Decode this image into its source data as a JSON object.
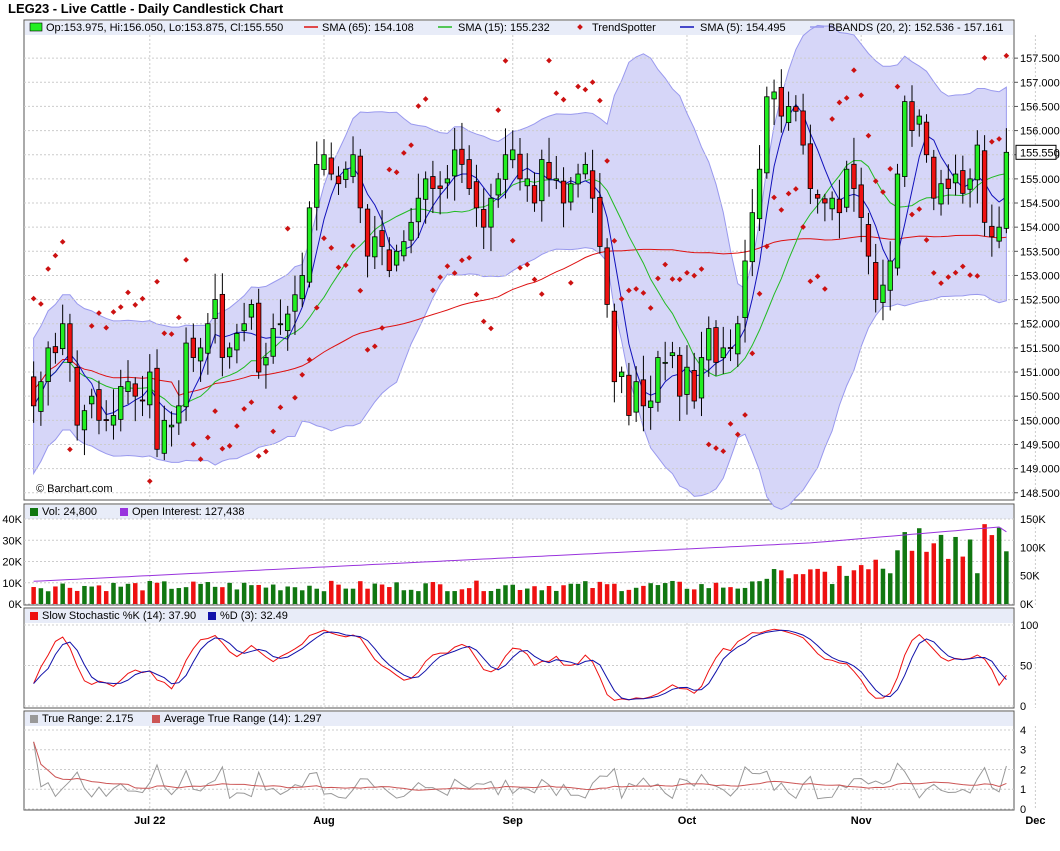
{
  "title": "LEG23 - Live Cattle - Daily Candlestick Chart",
  "watermark": "© Barchart.com",
  "last_price_label": "155.550",
  "colors": {
    "up": "#22ee22",
    "down": "#ee1111",
    "sma65": "#dd1111",
    "sma15": "#22bb22",
    "sma5": "#1111bb",
    "bband_fill": "#d6d6f8",
    "bband_line": "#9999ee",
    "trendspotter": "#cc1111",
    "vol_up": "#117711",
    "vol_down": "#ee1111",
    "open_interest": "#9933dd",
    "stoch_k": "#ee1111",
    "stoch_d": "#1111aa",
    "true_range": "#999999",
    "atr": "#cc5555"
  },
  "chart_data": [
    {
      "type": "candlestick",
      "id": "price",
      "legend": {
        "ohlc": "Op:153.975, Hi:156.050, Lo:153.875, Cl:155.550",
        "sma65": "SMA (65): 154.108",
        "sma15": "SMA (15): 155.232",
        "trendspotter": "TrendSpotter",
        "sma5": "SMA (5): 154.495",
        "bbands": "BBANDS (20, 2): 152.536 - 157.161"
      },
      "ylim": [
        148.35,
        158.0
      ],
      "yticks": [
        "157.500",
        "157.000",
        "156.500",
        "156.000",
        "155.500",
        "155.000",
        "154.500",
        "154.000",
        "153.500",
        "153.000",
        "152.500",
        "152.000",
        "151.500",
        "151.000",
        "150.500",
        "150.000",
        "149.500",
        "149.000",
        "148.500"
      ],
      "x_months": [
        {
          "label": "Jul 22",
          "index": 16
        },
        {
          "label": "Aug",
          "index": 40
        },
        {
          "label": "Sep",
          "index": 66
        },
        {
          "label": "Oct",
          "index": 90
        },
        {
          "label": "Nov",
          "index": 114
        },
        {
          "label": "Dec",
          "index": 138
        }
      ],
      "closes": [
        150.3,
        150.8,
        151.5,
        151.4,
        152.0,
        151.2,
        149.9,
        150.2,
        150.5,
        150.0,
        150.0,
        150.1,
        150.7,
        150.8,
        150.5,
        150.4,
        151.0,
        149.4,
        150.0,
        149.9,
        150.3,
        151.6,
        151.3,
        151.5,
        152.0,
        152.5,
        151.3,
        151.5,
        151.8,
        152.0,
        152.4,
        151.0,
        151.3,
        151.9,
        152.0,
        152.2,
        152.6,
        153.0,
        154.4,
        155.3,
        155.5,
        155.1,
        154.9,
        155.2,
        155.5,
        154.4,
        153.4,
        153.8,
        153.6,
        153.1,
        153.5,
        153.7,
        154.1,
        154.6,
        155.0,
        154.8,
        154.8,
        155.0,
        155.6,
        155.3,
        154.8,
        154.4,
        154.0,
        154.6,
        155.0,
        155.5,
        155.6,
        155.0,
        155.0,
        154.5,
        155.4,
        155.0,
        155.0,
        154.5,
        154.9,
        155.1,
        155.3,
        154.6,
        153.6,
        152.4,
        150.8,
        151.0,
        150.1,
        150.8,
        150.3,
        150.4,
        151.3,
        151.2,
        151.4,
        150.5,
        151.1,
        150.4,
        151.3,
        151.9,
        151.2,
        151.5,
        151.5,
        152.0,
        153.3,
        154.3,
        155.2,
        156.7,
        156.8,
        156.3,
        156.5,
        156.4,
        155.7,
        154.8,
        154.6,
        154.5,
        154.6,
        154.3,
        155.2,
        154.8,
        154.2,
        153.4,
        152.5,
        152.8,
        153.3,
        155.1,
        156.6,
        156.0,
        156.3,
        155.5,
        154.6,
        154.9,
        154.8,
        155.1,
        154.7,
        155.0,
        155.7,
        154.1,
        153.8,
        154.0,
        155.55
      ],
      "series": {
        "sma65_end": 154.108,
        "sma15_end": 155.232,
        "sma5_end": 154.495,
        "bbands_end": [
          152.536,
          157.161
        ]
      }
    },
    {
      "type": "bar",
      "id": "volume",
      "legend": {
        "vol": "Vol: 24,800",
        "oi": "Open Interest: 127,438"
      },
      "ylim_left": [
        0,
        40000
      ],
      "yticks_left": [
        "40K",
        "30K",
        "20K",
        "10K",
        "0K"
      ],
      "ylim_right": [
        0,
        150000
      ],
      "yticks_right": [
        "150K",
        "100K",
        "50K",
        "0K"
      ],
      "last_volume": 24800,
      "last_open_interest": 127438
    },
    {
      "type": "line",
      "id": "stochastic",
      "legend": {
        "k": "Slow Stochastic %K (14): 37.90",
        "d": "%D (3): 32.49"
      },
      "ylim": [
        0,
        100
      ],
      "yticks": [
        "100",
        "50",
        "0"
      ],
      "last_k": 37.9,
      "last_d": 32.49
    },
    {
      "type": "line",
      "id": "true-range",
      "legend": {
        "tr": "True Range: 2.175",
        "atr": "Average True Range (14): 1.297"
      },
      "ylim": [
        0,
        4.2
      ],
      "yticks": [
        "4",
        "3",
        "2",
        "1",
        "0"
      ],
      "last_tr": 2.175,
      "last_atr": 1.297
    }
  ]
}
